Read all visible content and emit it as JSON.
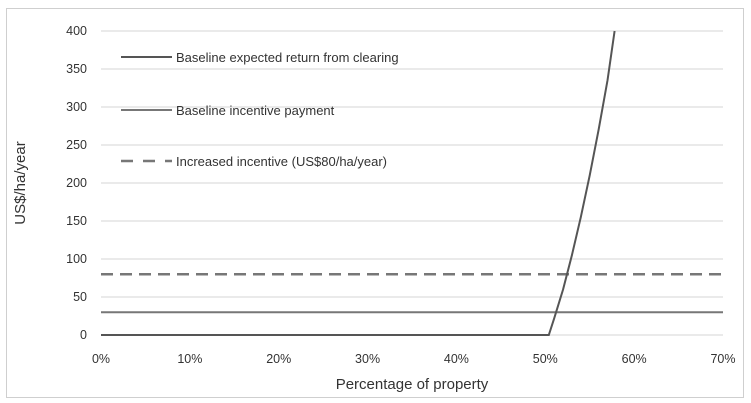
{
  "chart_data": {
    "type": "line",
    "xlabel": "Percentage of property",
    "ylabel": "US$/ha/year",
    "xlim": [
      0,
      70
    ],
    "ylim": [
      0,
      400
    ],
    "x_ticks": [
      0,
      10,
      20,
      30,
      40,
      50,
      60,
      70
    ],
    "x_tick_labels": [
      "0%",
      "10%",
      "20%",
      "30%",
      "40%",
      "50%",
      "60%",
      "70%"
    ],
    "y_ticks": [
      0,
      50,
      100,
      150,
      200,
      250,
      300,
      350,
      400
    ],
    "y_tick_labels": [
      "0",
      "50",
      "100",
      "150",
      "200",
      "250",
      "300",
      "350",
      "400"
    ],
    "grid": "horizontal",
    "legend_position": "top-left inside",
    "series": [
      {
        "name": "Baseline expected return from clearing",
        "color": "#555555",
        "style": "solid",
        "points": [
          [
            0,
            0
          ],
          [
            50.4,
            0
          ],
          [
            51,
            22
          ],
          [
            52,
            60
          ],
          [
            53,
            105
          ],
          [
            54,
            155
          ],
          [
            55,
            210
          ],
          [
            56,
            270
          ],
          [
            57,
            335
          ],
          [
            57.8,
            400
          ]
        ]
      },
      {
        "name": "Baseline incentive payment",
        "color": "#777777",
        "style": "solid",
        "points": [
          [
            0,
            30
          ],
          [
            70,
            30
          ]
        ]
      },
      {
        "name": "Increased incentive (US$80/ha/year)",
        "color": "#777777",
        "style": "dashed",
        "points": [
          [
            0,
            80
          ],
          [
            70,
            80
          ]
        ]
      }
    ]
  }
}
